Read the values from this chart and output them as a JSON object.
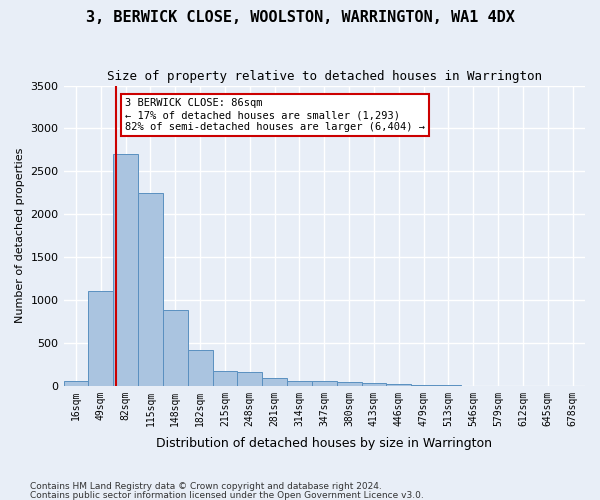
{
  "title": "3, BERWICK CLOSE, WOOLSTON, WARRINGTON, WA1 4DX",
  "subtitle": "Size of property relative to detached houses in Warrington",
  "xlabel": "Distribution of detached houses by size in Warrington",
  "ylabel": "Number of detached properties",
  "footer1": "Contains HM Land Registry data © Crown copyright and database right 2024.",
  "footer2": "Contains public sector information licensed under the Open Government Licence v3.0.",
  "bin_labels": [
    "16sqm",
    "49sqm",
    "82sqm",
    "115sqm",
    "148sqm",
    "182sqm",
    "215sqm",
    "248sqm",
    "281sqm",
    "314sqm",
    "347sqm",
    "380sqm",
    "413sqm",
    "446sqm",
    "479sqm",
    "513sqm",
    "546sqm",
    "579sqm",
    "612sqm",
    "645sqm",
    "678sqm"
  ],
  "bar_values": [
    60,
    1100,
    2700,
    2250,
    880,
    420,
    175,
    165,
    95,
    60,
    50,
    40,
    30,
    20,
    10,
    5,
    2,
    1,
    0,
    0,
    0
  ],
  "bar_color": "#aac4e0",
  "bar_edge_color": "#5a90c0",
  "property_size": 86,
  "property_bin_index": 2,
  "annotation_title": "3 BERWICK CLOSE: 86sqm",
  "annotation_line1": "← 17% of detached houses are smaller (1,293)",
  "annotation_line2": "82% of semi-detached houses are larger (6,404) →",
  "vline_color": "#cc0000",
  "annotation_box_color": "#ffffff",
  "annotation_box_edge": "#cc0000",
  "ylim": [
    0,
    3500
  ],
  "yticks": [
    0,
    500,
    1000,
    1500,
    2000,
    2500,
    3000,
    3500
  ],
  "bg_color": "#e8eef7",
  "plot_bg_color": "#e8eef7",
  "grid_color": "#ffffff"
}
